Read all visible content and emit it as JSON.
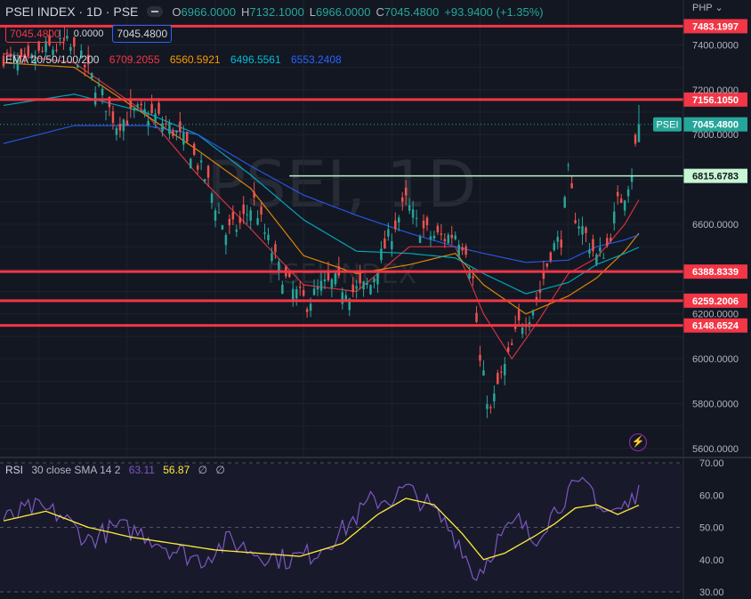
{
  "header": {
    "symbol": "PSEI INDEX · 1D · PSE",
    "open_key": "O",
    "open": "6966.0000",
    "high_key": "H",
    "high": "7132.1000",
    "low_key": "L",
    "low": "6966.0000",
    "close_key": "C",
    "close": "7045.4800",
    "change": "+93.9400 (+1.35%)",
    "sell": "7045.4800",
    "spread": "0.0000",
    "buy": "7045.4800"
  },
  "ema_legend": {
    "label": "EMA 20/50/100/200",
    "v20": "6709.2055",
    "v50": "6560.5921",
    "v100": "6496.5561",
    "v200": "6553.2408",
    "colors": {
      "e20": "#f23645",
      "e50": "#ff9800",
      "e100": "#00bcd4",
      "e200": "#2962ff"
    }
  },
  "currency": "PHP",
  "watermark": {
    "big": "PSEI, 1D",
    "small": "PSEI INDEX"
  },
  "rsi_legend": {
    "label": "RSI",
    "params": "30 close SMA 14 2",
    "rsi": "63.11",
    "sma": "56.87",
    "extra1": "∅",
    "extra2": "∅"
  },
  "alert_icon": "lightning-icon",
  "price_ticks": [
    "7400.0000",
    "7200.0000",
    "7000.0000",
    "6600.0000",
    "6200.0000",
    "6000.0000",
    "5800.0000",
    "5600.0000"
  ],
  "rsi_ticks": [
    "70.00",
    "60.00",
    "50.00",
    "40.00",
    "30.00"
  ],
  "chart_data": {
    "type": "line",
    "title": "PSEI INDEX · 1D · PSE",
    "ylim": [
      5560,
      7600
    ],
    "rsi_ylim": [
      30,
      70
    ],
    "horizontal_levels": [
      {
        "label": "7483.1997",
        "value": 7483.1997,
        "color": "#f23645"
      },
      {
        "label": "7156.1050",
        "value": 7156.105,
        "color": "#f23645"
      },
      {
        "label": "6815.6783",
        "value": 6815.6783,
        "color": "#b9f6ca"
      },
      {
        "label": "6388.8339",
        "value": 6388.8339,
        "color": "#f23645"
      },
      {
        "label": "6259.2006",
        "value": 6259.2006,
        "color": "#f23645"
      },
      {
        "label": "6148.6524",
        "value": 6148.6524,
        "color": "#f23645"
      }
    ],
    "last_price": {
      "label": "PSEI",
      "value": "7045.4800"
    },
    "close_anchors": [
      [
        0,
        7350
      ],
      [
        6,
        7300
      ],
      [
        12,
        7380
      ],
      [
        18,
        7400
      ],
      [
        22,
        7330
      ],
      [
        27,
        7200
      ],
      [
        32,
        7050
      ],
      [
        38,
        7100
      ],
      [
        43,
        7080
      ],
      [
        48,
        7020
      ],
      [
        53,
        6930
      ],
      [
        58,
        6780
      ],
      [
        63,
        6560
      ],
      [
        67,
        6600
      ],
      [
        71,
        6700
      ],
      [
        74,
        6560
      ],
      [
        78,
        6400
      ],
      [
        82,
        6300
      ],
      [
        86,
        6250
      ],
      [
        90,
        6320
      ],
      [
        94,
        6340
      ],
      [
        99,
        6300
      ],
      [
        104,
        6330
      ],
      [
        108,
        6500
      ],
      [
        111,
        6600
      ],
      [
        114,
        6700
      ],
      [
        117,
        6600
      ],
      [
        121,
        6550
      ],
      [
        125,
        6540
      ],
      [
        128,
        6560
      ],
      [
        131,
        6500
      ],
      [
        133,
        6350
      ],
      [
        135,
        5980
      ],
      [
        138,
        5760
      ],
      [
        140,
        5880
      ],
      [
        143,
        6000
      ],
      [
        146,
        6150
      ],
      [
        149,
        6200
      ],
      [
        152,
        6300
      ],
      [
        155,
        6480
      ],
      [
        158,
        6540
      ],
      [
        160,
        6820
      ],
      [
        162,
        6640
      ],
      [
        165,
        6550
      ],
      [
        168,
        6450
      ],
      [
        171,
        6500
      ],
      [
        174,
        6690
      ],
      [
        176,
        6740
      ],
      [
        178,
        6840
      ],
      [
        180,
        7045
      ]
    ],
    "ema_anchors": {
      "EMA 20": [
        [
          0,
          7360
        ],
        [
          20,
          7320
        ],
        [
          40,
          7100
        ],
        [
          55,
          6820
        ],
        [
          70,
          6580
        ],
        [
          85,
          6330
        ],
        [
          100,
          6300
        ],
        [
          115,
          6500
        ],
        [
          128,
          6500
        ],
        [
          136,
          6200
        ],
        [
          144,
          6000
        ],
        [
          152,
          6180
        ],
        [
          160,
          6380
        ],
        [
          168,
          6450
        ],
        [
          176,
          6600
        ],
        [
          180,
          6709
        ]
      ],
      "EMA 50": [
        [
          0,
          7320
        ],
        [
          20,
          7300
        ],
        [
          40,
          7090
        ],
        [
          55,
          6930
        ],
        [
          70,
          6760
        ],
        [
          85,
          6460
        ],
        [
          100,
          6380
        ],
        [
          115,
          6420
        ],
        [
          128,
          6470
        ],
        [
          136,
          6330
        ],
        [
          148,
          6200
        ],
        [
          160,
          6280
        ],
        [
          168,
          6360
        ],
        [
          176,
          6480
        ],
        [
          180,
          6560
        ]
      ],
      "EMA 100": [
        [
          0,
          7130
        ],
        [
          20,
          7180
        ],
        [
          40,
          7100
        ],
        [
          55,
          7000
        ],
        [
          70,
          6820
        ],
        [
          85,
          6620
        ],
        [
          100,
          6480
        ],
        [
          115,
          6470
        ],
        [
          128,
          6450
        ],
        [
          136,
          6380
        ],
        [
          148,
          6290
        ],
        [
          160,
          6340
        ],
        [
          168,
          6420
        ],
        [
          176,
          6470
        ],
        [
          180,
          6497
        ]
      ],
      "EMA 200": [
        [
          0,
          6960
        ],
        [
          20,
          7040
        ],
        [
          40,
          7040
        ],
        [
          55,
          7000
        ],
        [
          70,
          6860
        ],
        [
          85,
          6730
        ],
        [
          100,
          6640
        ],
        [
          115,
          6560
        ],
        [
          128,
          6500
        ],
        [
          136,
          6470
        ],
        [
          148,
          6430
        ],
        [
          160,
          6440
        ],
        [
          168,
          6500
        ],
        [
          176,
          6530
        ],
        [
          180,
          6553
        ]
      ]
    },
    "rsi_anchors": [
      [
        0,
        52
      ],
      [
        8,
        56
      ],
      [
        16,
        54
      ],
      [
        24,
        46
      ],
      [
        32,
        50
      ],
      [
        40,
        48
      ],
      [
        48,
        43
      ],
      [
        56,
        40
      ],
      [
        64,
        46
      ],
      [
        72,
        42
      ],
      [
        80,
        40
      ],
      [
        88,
        42
      ],
      [
        96,
        49
      ],
      [
        104,
        58
      ],
      [
        110,
        59
      ],
      [
        114,
        62
      ],
      [
        120,
        57
      ],
      [
        126,
        50
      ],
      [
        130,
        44
      ],
      [
        133,
        35
      ],
      [
        136,
        38
      ],
      [
        140,
        46
      ],
      [
        146,
        52
      ],
      [
        150,
        46
      ],
      [
        156,
        55
      ],
      [
        160,
        61
      ],
      [
        166,
        63
      ],
      [
        170,
        55
      ],
      [
        174,
        55
      ],
      [
        178,
        58
      ],
      [
        180,
        63.11
      ]
    ],
    "rsi_sma_anchors": [
      [
        0,
        52
      ],
      [
        12,
        55
      ],
      [
        24,
        50
      ],
      [
        36,
        47
      ],
      [
        48,
        45
      ],
      [
        60,
        43
      ],
      [
        72,
        42
      ],
      [
        84,
        41
      ],
      [
        96,
        45
      ],
      [
        106,
        54
      ],
      [
        114,
        59
      ],
      [
        122,
        57
      ],
      [
        130,
        48
      ],
      [
        136,
        40
      ],
      [
        142,
        42
      ],
      [
        150,
        47
      ],
      [
        156,
        51
      ],
      [
        162,
        56
      ],
      [
        168,
        57
      ],
      [
        174,
        54
      ],
      [
        180,
        56.87
      ]
    ],
    "series_colors": {
      "up": "#26a69a",
      "down": "#ef5350",
      "rsi": "#7e57c2",
      "rsi_sma": "#ffeb3b"
    }
  }
}
